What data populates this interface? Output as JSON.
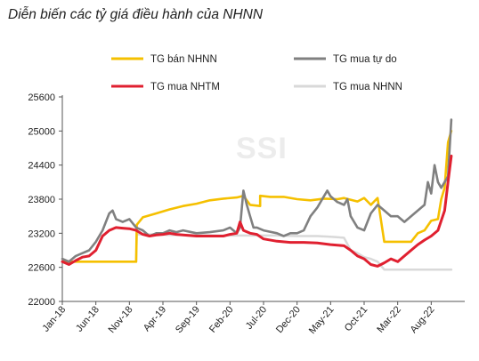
{
  "title": "Diễn biến các tỷ giá điều hành của NHNN",
  "watermark": "SSI",
  "chart_data": {
    "type": "line",
    "title": "Diễn biến các tỷ giá điều hành của NHNN",
    "ylim": [
      22000,
      25600
    ],
    "y_ticks": [
      "25600",
      "25000",
      "24400",
      "23800",
      "23200",
      "22600",
      "22000"
    ],
    "x_ticks": [
      "Jan-18",
      "Jun-18",
      "Nov-18",
      "Apr-19",
      "Sep-19",
      "Feb-20",
      "Jul-20",
      "Dec-20",
      "May-21",
      "Oct-21",
      "Mar-22",
      "Aug-22"
    ],
    "grid": false,
    "legend": "top",
    "series": [
      {
        "name": "TG bán NHNN",
        "color": "#f5c000",
        "points": [
          [
            0,
            22700
          ],
          [
            2,
            22700
          ],
          [
            5,
            22700
          ],
          [
            8,
            22700
          ],
          [
            11,
            22700
          ],
          [
            11.1,
            23350
          ],
          [
            12,
            23480
          ],
          [
            14,
            23550
          ],
          [
            16,
            23620
          ],
          [
            18,
            23680
          ],
          [
            20,
            23720
          ],
          [
            22,
            23780
          ],
          [
            24,
            23810
          ],
          [
            26,
            23830
          ],
          [
            27,
            23860
          ],
          [
            28,
            23700
          ],
          [
            29.5,
            23680
          ],
          [
            29.5,
            23860
          ],
          [
            31,
            23840
          ],
          [
            33,
            23840
          ],
          [
            35,
            23800
          ],
          [
            37,
            23780
          ],
          [
            39,
            23810
          ],
          [
            41,
            23800
          ],
          [
            42,
            23820
          ],
          [
            44,
            23760
          ],
          [
            45,
            23820
          ],
          [
            46,
            23700
          ],
          [
            47,
            23820
          ],
          [
            48,
            23050
          ],
          [
            50,
            23050
          ],
          [
            52,
            23050
          ],
          [
            53,
            23200
          ],
          [
            54,
            23250
          ],
          [
            55,
            23420
          ],
          [
            56,
            23450
          ],
          [
            56.5,
            23800
          ],
          [
            57,
            24000
          ],
          [
            57.5,
            24800
          ],
          [
            58,
            25000
          ]
        ]
      },
      {
        "name": "TG mua tự do",
        "color": "#808080",
        "points": [
          [
            0,
            22750
          ],
          [
            1,
            22700
          ],
          [
            2,
            22800
          ],
          [
            3,
            22850
          ],
          [
            4,
            22900
          ],
          [
            5,
            23050
          ],
          [
            6,
            23250
          ],
          [
            7,
            23550
          ],
          [
            7.5,
            23600
          ],
          [
            8,
            23450
          ],
          [
            9,
            23400
          ],
          [
            10,
            23450
          ],
          [
            11,
            23300
          ],
          [
            12,
            23250
          ],
          [
            13,
            23150
          ],
          [
            14,
            23200
          ],
          [
            15,
            23200
          ],
          [
            16,
            23250
          ],
          [
            17,
            23220
          ],
          [
            18,
            23250
          ],
          [
            20,
            23200
          ],
          [
            22,
            23220
          ],
          [
            24,
            23250
          ],
          [
            25,
            23300
          ],
          [
            26,
            23200
          ],
          [
            26.5,
            23300
          ],
          [
            27,
            23950
          ],
          [
            27.5,
            23700
          ],
          [
            28,
            23500
          ],
          [
            28.5,
            23300
          ],
          [
            29,
            23300
          ],
          [
            30,
            23250
          ],
          [
            32,
            23200
          ],
          [
            33,
            23150
          ],
          [
            34,
            23200
          ],
          [
            35,
            23200
          ],
          [
            36,
            23250
          ],
          [
            37,
            23500
          ],
          [
            38,
            23650
          ],
          [
            39,
            23850
          ],
          [
            39.5,
            23950
          ],
          [
            40,
            23850
          ],
          [
            41,
            23750
          ],
          [
            42,
            23700
          ],
          [
            42.5,
            23800
          ],
          [
            43,
            23500
          ],
          [
            44,
            23300
          ],
          [
            45,
            23250
          ],
          [
            46,
            23550
          ],
          [
            47,
            23700
          ],
          [
            48,
            23600
          ],
          [
            49,
            23500
          ],
          [
            50,
            23500
          ],
          [
            51,
            23400
          ],
          [
            52,
            23500
          ],
          [
            53,
            23600
          ],
          [
            54,
            23700
          ],
          [
            54.5,
            24100
          ],
          [
            55,
            23900
          ],
          [
            55.5,
            24400
          ],
          [
            56,
            24100
          ],
          [
            56.5,
            24000
          ],
          [
            57,
            24100
          ],
          [
            57.5,
            24200
          ],
          [
            58,
            25200
          ]
        ]
      },
      {
        "name": "TG mua NHTM",
        "color": "#e02030",
        "points": [
          [
            0,
            22700
          ],
          [
            1,
            22650
          ],
          [
            2,
            22720
          ],
          [
            3,
            22780
          ],
          [
            4,
            22800
          ],
          [
            5,
            22900
          ],
          [
            6,
            23150
          ],
          [
            7,
            23250
          ],
          [
            8,
            23300
          ],
          [
            9,
            23290
          ],
          [
            10,
            23280
          ],
          [
            11,
            23250
          ],
          [
            12,
            23180
          ],
          [
            13,
            23150
          ],
          [
            14,
            23170
          ],
          [
            15,
            23180
          ],
          [
            16,
            23200
          ],
          [
            17,
            23180
          ],
          [
            18,
            23170
          ],
          [
            20,
            23150
          ],
          [
            22,
            23150
          ],
          [
            24,
            23150
          ],
          [
            25,
            23180
          ],
          [
            26,
            23200
          ],
          [
            26.5,
            23400
          ],
          [
            27,
            23250
          ],
          [
            28,
            23200
          ],
          [
            29,
            23180
          ],
          [
            30,
            23100
          ],
          [
            32,
            23060
          ],
          [
            34,
            23040
          ],
          [
            36,
            23040
          ],
          [
            38,
            23030
          ],
          [
            40,
            23000
          ],
          [
            42,
            22980
          ],
          [
            43,
            22900
          ],
          [
            44,
            22800
          ],
          [
            45,
            22750
          ],
          [
            46,
            22650
          ],
          [
            47,
            22620
          ],
          [
            48,
            22680
          ],
          [
            49,
            22750
          ],
          [
            50,
            22700
          ],
          [
            51,
            22800
          ],
          [
            52,
            22900
          ],
          [
            53,
            23000
          ],
          [
            54,
            23080
          ],
          [
            55,
            23150
          ],
          [
            56,
            23250
          ],
          [
            57,
            23600
          ],
          [
            57.5,
            24100
          ],
          [
            58,
            24560
          ]
        ]
      },
      {
        "name": "TG mua NHNN",
        "color": "#d9d9d9",
        "points": [
          [
            0,
            22700
          ],
          [
            5,
            22700
          ],
          [
            10,
            22700
          ],
          [
            11,
            22700
          ],
          [
            11.1,
            23180
          ],
          [
            14,
            23180
          ],
          [
            16,
            23170
          ],
          [
            20,
            23170
          ],
          [
            24,
            23160
          ],
          [
            28,
            23160
          ],
          [
            32,
            23160
          ],
          [
            35,
            23150
          ],
          [
            38,
            23150
          ],
          [
            40,
            23140
          ],
          [
            42,
            23120
          ],
          [
            43,
            22900
          ],
          [
            44,
            22850
          ],
          [
            45,
            22780
          ],
          [
            46,
            22750
          ],
          [
            47,
            22700
          ],
          [
            48,
            22560
          ],
          [
            50,
            22560
          ],
          [
            52,
            22560
          ],
          [
            54,
            22560
          ],
          [
            56,
            22560
          ],
          [
            58,
            22560
          ]
        ]
      }
    ]
  }
}
